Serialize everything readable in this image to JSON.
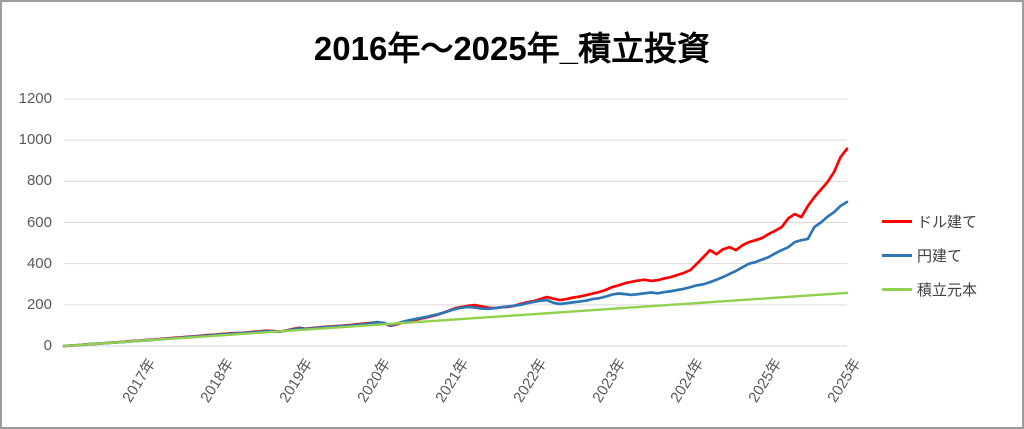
{
  "window": {
    "background": "#ffffff",
    "border_color": "#9c9c9c"
  },
  "chart_data": {
    "type": "line",
    "title": "2016年～2025年_積立投資",
    "xlabel": "",
    "ylabel": "",
    "ylim": [
      0,
      1200
    ],
    "y_ticks": [
      0,
      200,
      400,
      600,
      800,
      1000,
      1200
    ],
    "x_range": [
      0,
      120
    ],
    "x_tick_positions": [
      12,
      24,
      36,
      48,
      60,
      72,
      84,
      96,
      108,
      120
    ],
    "x_tick_labels": [
      "2017年",
      "2018年",
      "2019年",
      "2020年",
      "2021年",
      "2022年",
      "2023年",
      "2024年",
      "2025年",
      "2025年"
    ],
    "grid": "horizontal",
    "gridline_color": "#d9d9d9",
    "axis_text_color": "#595959",
    "legend_position": "right",
    "series": [
      {
        "name": "ドル建て",
        "color": "#ff0000",
        "values": [
          0,
          2,
          4,
          7,
          9,
          11,
          13,
          16,
          18,
          20,
          23,
          25,
          27,
          30,
          32,
          35,
          37,
          40,
          42,
          45,
          47,
          50,
          53,
          55,
          58,
          60,
          62,
          63,
          66,
          69,
          71,
          74,
          73,
          70,
          75,
          82,
          88,
          84,
          87,
          90,
          93,
          95,
          97,
          100,
          102,
          106,
          109,
          112,
          115,
          110,
          98,
          105,
          115,
          122,
          128,
          135,
          142,
          150,
          160,
          172,
          184,
          190,
          196,
          199,
          192,
          186,
          184,
          188,
          190,
          195,
          205,
          212,
          218,
          228,
          238,
          230,
          223,
          228,
          235,
          240,
          247,
          255,
          262,
          272,
          286,
          295,
          305,
          312,
          318,
          322,
          316,
          320,
          328,
          335,
          345,
          355,
          369,
          400,
          432,
          466,
          446,
          470,
          480,
          466,
          490,
          505,
          514,
          525,
          544,
          560,
          578,
          620,
          641,
          626,
          680,
          723,
          760,
          796,
          844,
          917,
          958
        ]
      },
      {
        "name": "円建て",
        "color": "#2e75b6",
        "values": [
          0,
          2,
          4,
          6,
          9,
          11,
          13,
          15,
          17,
          19,
          22,
          24,
          26,
          28,
          31,
          33,
          36,
          38,
          40,
          43,
          45,
          48,
          50,
          53,
          56,
          58,
          60,
          62,
          64,
          67,
          69,
          72,
          71,
          69,
          74,
          80,
          86,
          83,
          85,
          88,
          91,
          93,
          95,
          98,
          100,
          103,
          106,
          110,
          116,
          112,
          100,
          108,
          118,
          126,
          132,
          138,
          145,
          152,
          160,
          170,
          180,
          186,
          190,
          186,
          182,
          180,
          184,
          188,
          192,
          196,
          200,
          208,
          214,
          220,
          223,
          210,
          204,
          208,
          212,
          216,
          220,
          228,
          232,
          240,
          250,
          255,
          252,
          248,
          252,
          256,
          260,
          256,
          262,
          266,
          272,
          278,
          286,
          295,
          300,
          310,
          322,
          335,
          350,
          365,
          383,
          400,
          408,
          420,
          432,
          450,
          466,
          480,
          505,
          514,
          520,
          578,
          600,
          628,
          650,
          680,
          700
        ]
      },
      {
        "name": "積立元本",
        "color": "#92d050",
        "values": [
          0,
          2.2,
          4.3,
          6.5,
          8.6,
          10.8,
          12.9,
          15.1,
          17.2,
          19.4,
          21.5,
          23.7,
          25.8,
          28,
          30.1,
          32.3,
          34.4,
          36.6,
          38.7,
          40.9,
          43,
          45.2,
          47.3,
          49.5,
          51.6,
          53.8,
          55.9,
          58.1,
          60.2,
          62.4,
          64.5,
          66.7,
          68.8,
          71,
          73.1,
          75.3,
          77.4,
          79.6,
          81.7,
          83.9,
          86,
          88.2,
          90.3,
          92.5,
          94.6,
          96.8,
          98.9,
          101.1,
          103.2,
          105.4,
          107.5,
          109.7,
          111.8,
          114,
          116.1,
          118.3,
          120.4,
          122.6,
          124.7,
          126.9,
          129,
          131.2,
          133.3,
          135.5,
          137.6,
          139.8,
          141.9,
          144.1,
          146.2,
          148.4,
          150.5,
          152.7,
          154.8,
          157,
          159.1,
          161.3,
          163.4,
          165.6,
          167.7,
          169.9,
          172,
          174.2,
          176.3,
          178.5,
          180.6,
          182.8,
          184.9,
          187.1,
          189.2,
          191.4,
          193.5,
          195.7,
          197.8,
          200,
          202.1,
          204.3,
          206.4,
          208.6,
          210.7,
          212.9,
          215,
          217.2,
          219.3,
          221.5,
          223.6,
          225.8,
          227.9,
          230.1,
          232.2,
          234.4,
          236.5,
          238.7,
          240.8,
          243,
          245.1,
          247.3,
          249.4,
          251.6,
          253.7,
          255.9,
          258
        ]
      }
    ]
  }
}
